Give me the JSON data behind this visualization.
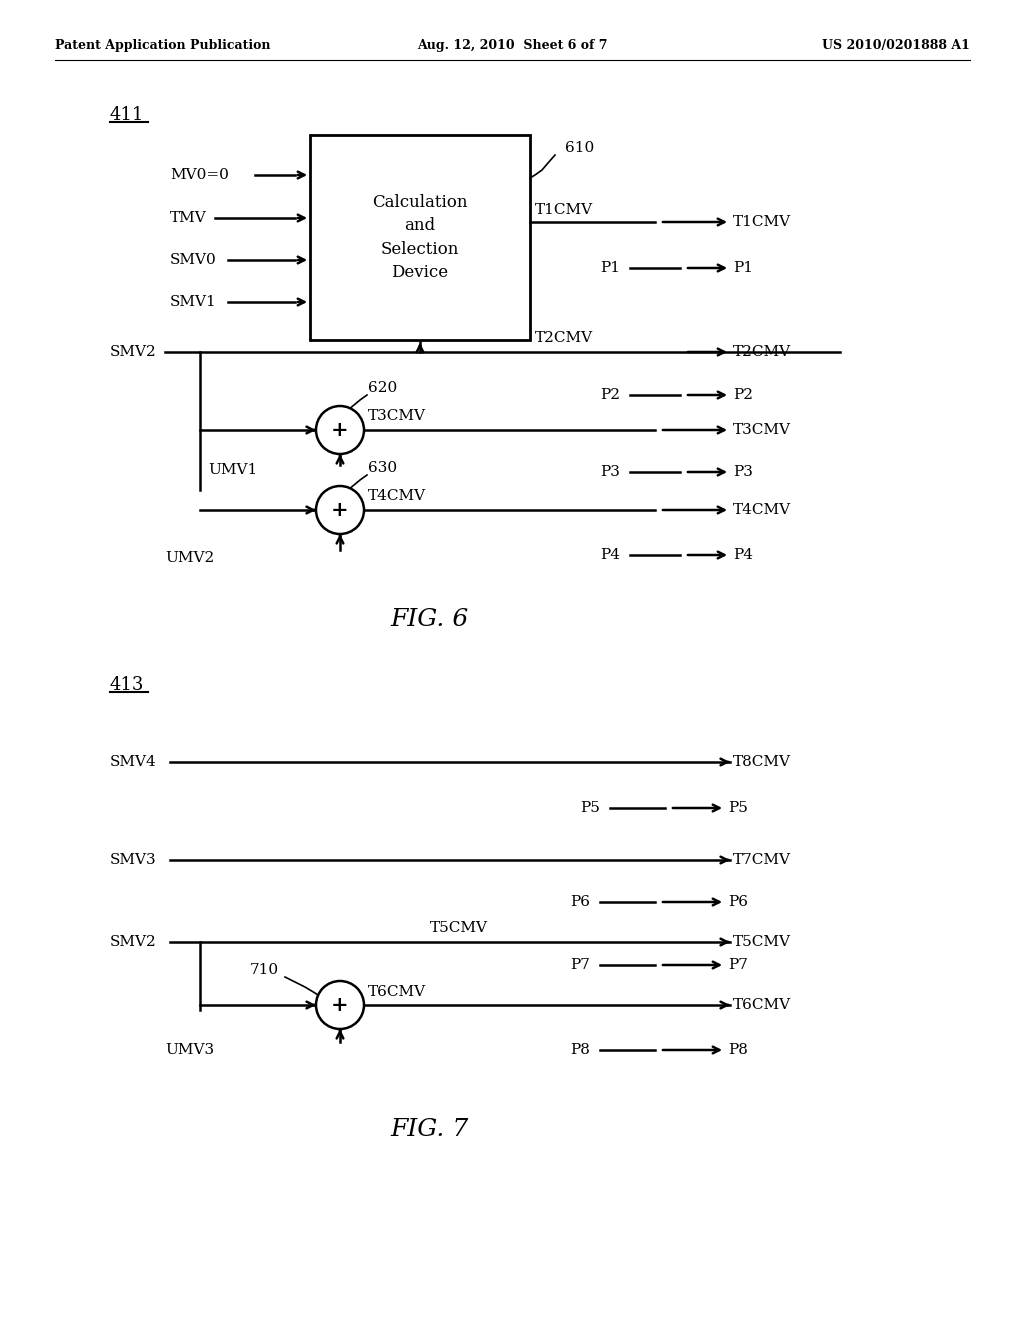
{
  "bg_color": "#ffffff",
  "header_left": "Patent Application Publication",
  "header_mid": "Aug. 12, 2010  Sheet 6 of 7",
  "header_right": "US 2010/0201888 A1",
  "fig6_label": "411",
  "fig6_caption": "FIG. 6",
  "fig7_label": "413",
  "fig7_caption": "FIG. 7",
  "box_text": "Calculation\nand\nSelection\nDevice",
  "box_610": "610",
  "box_620": "620",
  "box_630": "630",
  "box_710": "710",
  "lw": 1.8,
  "fs_header": 9,
  "fs_label": 11,
  "fs_caption": 18,
  "fs_ref": 13
}
